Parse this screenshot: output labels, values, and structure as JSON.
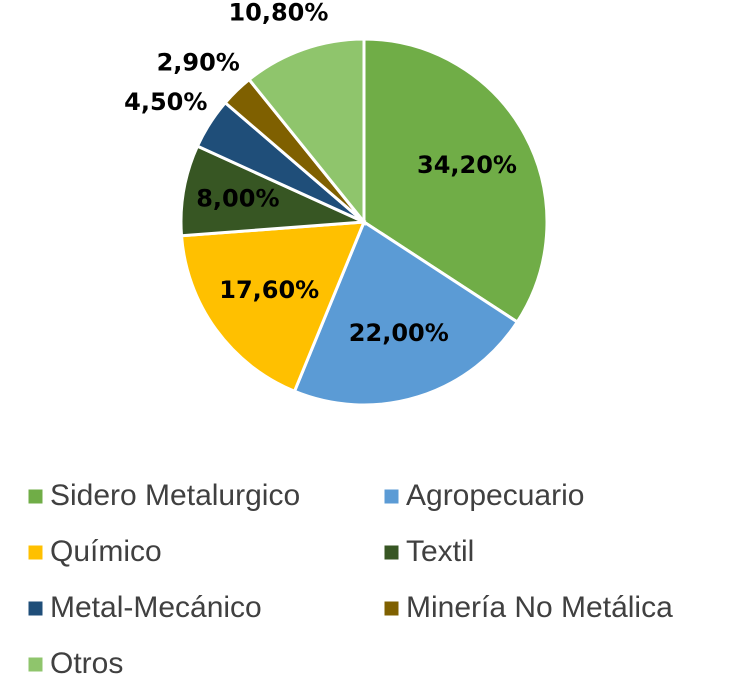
{
  "chart_data": {
    "type": "pie",
    "categories": [
      "Sidero Metalurgico",
      "Agropecuario",
      "Químico",
      "Textil",
      "Metal-Mecánico",
      "Minería No Metálica",
      "Otros"
    ],
    "values": [
      34.2,
      22.0,
      17.6,
      8.0,
      4.5,
      2.9,
      10.8
    ],
    "value_labels": [
      "34,20%",
      "22,00%",
      "17,60%",
      "8,00%",
      "4,50%",
      "2,90%",
      "10,80%"
    ],
    "colors": [
      "#70ad47",
      "#5b9bd5",
      "#ffc000",
      "#375623",
      "#1f4e79",
      "#7f6000",
      "#8fc56c"
    ],
    "legend": "bottom"
  }
}
